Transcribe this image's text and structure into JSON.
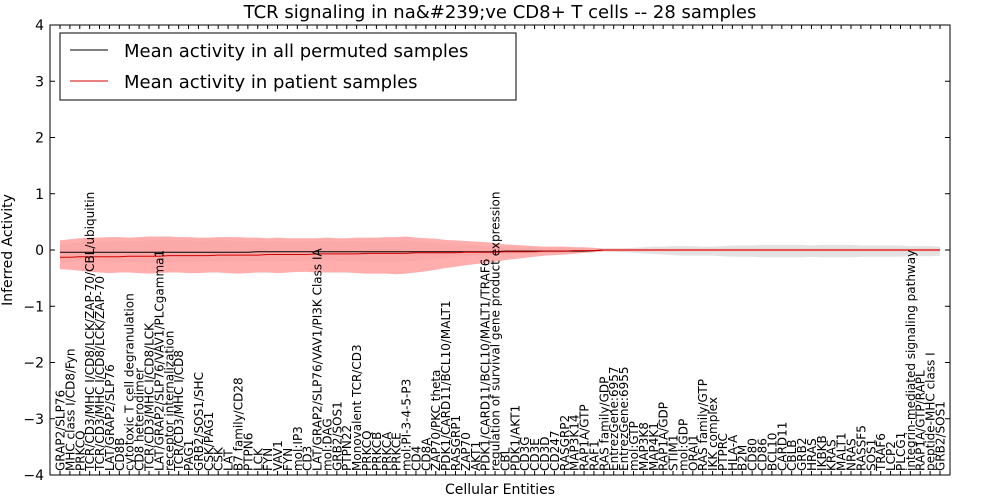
{
  "chart_data": {
    "type": "line",
    "title": "TCR signaling in na&#239;ve CD8+ T cells -- 28 samples",
    "xlabel": "Cellular Entities",
    "ylabel": "Inferred Activity",
    "ylim": [
      -4,
      4
    ],
    "yticks": [
      "4",
      "3",
      "2",
      "1",
      "0",
      "−1",
      "−2",
      "−3",
      "−4"
    ],
    "legend": {
      "position": "top-left",
      "entries": [
        {
          "label": "Mean activity in all permuted samples",
          "color": "#000000"
        },
        {
          "label": "Mean activity in patient samples",
          "color": "#d40000"
        }
      ]
    },
    "categories": [
      "GRAP2/SLP76",
      "MHC class I/CD8/Fyn",
      "PRKCQ",
      "TCR/CD3/MHC I/CD8/LCK/ZAP-70/CBL/ubiquitin",
      "TCR/CD3/MHC I/CD8/LCK/ZAP-70",
      "LAT/GRAP2/SLP76",
      "CD8B",
      "cytotoxic T cell degranulation",
      "CD8 heterodimer",
      "TCR/CD3/MHC I/CD8/LCK",
      "LAT/GRAP2/SLP76/VAV1/PLCgamma1",
      "receptor internalization",
      "TCR/CD3/MHC I/CD8",
      "PAG1",
      "GRB2/SOS1/SHC",
      "CSK/PAG1",
      "CSK",
      "LAT",
      "B7 family/CD28",
      "PTPN6",
      "LCK",
      "FYN",
      "VAV1",
      "FYN",
      "mol:IP3",
      "CD3",
      "LAT/GRAP2/SLP76/VAV1/PI3K Class IA",
      "mol:DAG",
      "GRB2/SOS1",
      "PTPN22",
      "Monovalent TCR/CD3",
      "PRKCQ",
      "PRKCB",
      "PRKCA",
      "PRKCE",
      "mol:PI-3-4-5-P3",
      "CD4",
      "CD8A",
      "ZAP70/PKC theta",
      "PDK1/CARD11/BCL10/MALT1",
      "RASGRP1",
      "ZAP70",
      "AKT1",
      "PDK1/CARD11/BCL10/MALT1/TRAF6",
      "regulation of survival gene product expression",
      "CBL",
      "PDK1/AKT1",
      "CD3G",
      "CD3E",
      "CD3D",
      "CD247",
      "RASGRP2",
      "MAP3K14",
      "RAP1A/GTP",
      "RAF1",
      "RAS family/GDP",
      "EntrezGene:6957",
      "EntrezGene:6955",
      "mol:GTP",
      "MAP3K8",
      "MAP4K1",
      "RAP1A/GDP",
      "STIM1",
      "mol:GDP",
      "ORAI1",
      "RAS family/GTP",
      "IKK complex",
      "PTPRC",
      "HLA-A",
      "B2M",
      "CD80",
      "CD86",
      "BCL10",
      "CARD11",
      "CBLB",
      "GRB2",
      "HRAS",
      "IKBKB",
      "KRAS",
      "MALT1",
      "NRAS",
      "RASSF5",
      "SOS1",
      "TRAF6",
      "LCP2",
      "PLCG1",
      "integrin-mediated signaling pathway",
      "RAP1A/GTP/RAPL",
      "peptide-MHC class I",
      "GRB2/SOS1"
    ],
    "series": [
      {
        "name": "Mean activity in all permuted samples",
        "color": "#000000",
        "values": [
          -0.04,
          -0.04,
          -0.04,
          -0.04,
          -0.04,
          -0.04,
          -0.04,
          -0.04,
          -0.04,
          -0.04,
          -0.04,
          -0.04,
          -0.04,
          -0.04,
          -0.04,
          -0.04,
          -0.04,
          -0.04,
          -0.04,
          -0.04,
          -0.03,
          -0.03,
          -0.03,
          -0.03,
          -0.03,
          -0.03,
          -0.03,
          -0.03,
          -0.03,
          -0.03,
          -0.03,
          -0.03,
          -0.03,
          -0.03,
          -0.03,
          -0.03,
          -0.03,
          -0.03,
          -0.03,
          -0.03,
          -0.03,
          -0.03,
          -0.03,
          -0.03,
          -0.03,
          -0.02,
          -0.02,
          -0.02,
          -0.02,
          -0.02,
          -0.02,
          -0.02,
          -0.02,
          -0.02,
          -0.01,
          0.0,
          0.0,
          0.0,
          0.0,
          0.0,
          0.0,
          0.0,
          0.0,
          0.0,
          0.0,
          0.0,
          0.0,
          0.0,
          0.0,
          0.0,
          0.0,
          0.0,
          0.0,
          0.0,
          0.0,
          0.0,
          0.0,
          0.0,
          0.0,
          0.0,
          0.0,
          0.0,
          0.0,
          0.0,
          0.0,
          0.0,
          0.0,
          0.0,
          0.0,
          0.0
        ]
      },
      {
        "name": "Mean activity in patient samples",
        "color": "#d40000",
        "values": [
          -0.13,
          -0.13,
          -0.12,
          -0.12,
          -0.12,
          -0.12,
          -0.12,
          -0.11,
          -0.11,
          -0.11,
          -0.11,
          -0.1,
          -0.1,
          -0.1,
          -0.1,
          -0.1,
          -0.09,
          -0.09,
          -0.09,
          -0.09,
          -0.09,
          -0.08,
          -0.08,
          -0.08,
          -0.08,
          -0.08,
          -0.07,
          -0.07,
          -0.07,
          -0.07,
          -0.07,
          -0.06,
          -0.06,
          -0.06,
          -0.06,
          -0.06,
          -0.05,
          -0.05,
          -0.05,
          -0.05,
          -0.05,
          -0.04,
          -0.04,
          -0.04,
          -0.04,
          -0.03,
          -0.03,
          -0.03,
          -0.03,
          -0.02,
          -0.02,
          -0.02,
          -0.01,
          -0.01,
          -0.01,
          0.0,
          0.0,
          0.0,
          0.0,
          0.0,
          0.0,
          0.0,
          0.0,
          0.0,
          0.0,
          0.0,
          0.0,
          0.0,
          0.0,
          0.0,
          0.0,
          0.0,
          0.0,
          0.0,
          0.0,
          0.0,
          0.0,
          0.0,
          0.0,
          0.0,
          0.0,
          0.0,
          0.0,
          0.0,
          0.0,
          0.0,
          0.0,
          0.0,
          0.0,
          0.0
        ]
      }
    ],
    "bands": [
      {
        "name": "permuted spread",
        "color": "#d9d9d9",
        "upper": [
          0.1,
          0.12,
          0.13,
          0.14,
          0.14,
          0.15,
          0.16,
          0.16,
          0.16,
          0.17,
          0.17,
          0.17,
          0.17,
          0.17,
          0.16,
          0.17,
          0.17,
          0.17,
          0.16,
          0.16,
          0.16,
          0.15,
          0.16,
          0.15,
          0.15,
          0.16,
          0.16,
          0.16,
          0.15,
          0.16,
          0.16,
          0.15,
          0.15,
          0.16,
          0.16,
          0.17,
          0.15,
          0.14,
          0.13,
          0.11,
          0.1,
          0.09,
          0.08,
          0.07,
          0.06,
          0.05,
          0.05,
          0.04,
          0.04,
          0.04,
          0.04,
          0.05,
          0.05,
          0.04,
          0.03,
          0.03,
          0.03,
          0.03,
          0.04,
          0.05,
          0.06,
          0.06,
          0.07,
          0.07,
          0.07,
          0.06,
          0.06,
          0.07,
          0.08,
          0.08,
          0.08,
          0.09,
          0.09,
          0.09,
          0.09,
          0.09,
          0.08,
          0.09,
          0.09,
          0.09,
          0.09,
          0.08,
          0.08,
          0.08,
          0.08,
          0.08,
          0.07,
          0.07,
          0.07,
          0.06
        ],
        "lower": [
          -0.24,
          -0.22,
          -0.2,
          -0.19,
          -0.2,
          -0.21,
          -0.22,
          -0.21,
          -0.22,
          -0.23,
          -0.22,
          -0.21,
          -0.22,
          -0.22,
          -0.21,
          -0.2,
          -0.21,
          -0.2,
          -0.21,
          -0.2,
          -0.19,
          -0.2,
          -0.2,
          -0.19,
          -0.2,
          -0.19,
          -0.18,
          -0.18,
          -0.19,
          -0.2,
          -0.2,
          -0.21,
          -0.22,
          -0.22,
          -0.22,
          -0.2,
          -0.19,
          -0.18,
          -0.16,
          -0.14,
          -0.12,
          -0.11,
          -0.1,
          -0.09,
          -0.08,
          -0.07,
          -0.06,
          -0.06,
          -0.05,
          -0.05,
          -0.05,
          -0.05,
          -0.05,
          -0.05,
          -0.04,
          -0.03,
          -0.03,
          -0.04,
          -0.05,
          -0.06,
          -0.07,
          -0.08,
          -0.09,
          -0.1,
          -0.1,
          -0.1,
          -0.1,
          -0.11,
          -0.12,
          -0.12,
          -0.12,
          -0.13,
          -0.13,
          -0.13,
          -0.13,
          -0.13,
          -0.12,
          -0.13,
          -0.13,
          -0.13,
          -0.13,
          -0.12,
          -0.12,
          -0.12,
          -0.12,
          -0.12,
          -0.11,
          -0.11,
          -0.11,
          -0.1
        ]
      },
      {
        "name": "patient spread",
        "color": "#ff9999",
        "upper": [
          0.17,
          0.19,
          0.21,
          0.22,
          0.22,
          0.23,
          0.23,
          0.22,
          0.23,
          0.24,
          0.24,
          0.24,
          0.23,
          0.23,
          0.22,
          0.22,
          0.23,
          0.23,
          0.23,
          0.22,
          0.22,
          0.21,
          0.22,
          0.21,
          0.21,
          0.21,
          0.21,
          0.22,
          0.21,
          0.21,
          0.22,
          0.22,
          0.22,
          0.23,
          0.23,
          0.24,
          0.22,
          0.21,
          0.2,
          0.18,
          0.17,
          0.16,
          0.15,
          0.14,
          0.12,
          0.1,
          0.09,
          0.08,
          0.07,
          0.06,
          0.06,
          0.06,
          0.05,
          0.05,
          0.04,
          0.02,
          0.02,
          0.02,
          0.02,
          0.02,
          0.02,
          0.02,
          0.02,
          0.02,
          0.02,
          0.02,
          0.02,
          0.02,
          0.02,
          0.02,
          0.02,
          0.02,
          0.02,
          0.02,
          0.02,
          0.02,
          0.02,
          0.02,
          0.02,
          0.02,
          0.02,
          0.02,
          0.02,
          0.02,
          0.02,
          0.02,
          0.02,
          0.02,
          0.02,
          0.02
        ],
        "lower": [
          -0.34,
          -0.35,
          -0.37,
          -0.39,
          -0.4,
          -0.41,
          -0.4,
          -0.4,
          -0.41,
          -0.42,
          -0.41,
          -0.4,
          -0.4,
          -0.41,
          -0.41,
          -0.4,
          -0.4,
          -0.41,
          -0.42,
          -0.41,
          -0.4,
          -0.4,
          -0.41,
          -0.4,
          -0.39,
          -0.39,
          -0.4,
          -0.4,
          -0.4,
          -0.4,
          -0.41,
          -0.42,
          -0.42,
          -0.42,
          -0.43,
          -0.42,
          -0.4,
          -0.38,
          -0.35,
          -0.32,
          -0.3,
          -0.27,
          -0.25,
          -0.23,
          -0.21,
          -0.18,
          -0.16,
          -0.14,
          -0.12,
          -0.1,
          -0.09,
          -0.08,
          -0.07,
          -0.05,
          -0.04,
          -0.02,
          -0.02,
          -0.02,
          -0.02,
          -0.02,
          -0.02,
          -0.02,
          -0.02,
          -0.02,
          -0.02,
          -0.02,
          -0.02,
          -0.02,
          -0.02,
          -0.02,
          -0.02,
          -0.02,
          -0.02,
          -0.02,
          -0.02,
          -0.02,
          -0.02,
          -0.02,
          -0.02,
          -0.02,
          -0.02,
          -0.02,
          -0.02,
          -0.02,
          -0.02,
          -0.02,
          -0.02,
          -0.02,
          -0.02,
          -0.02
        ]
      }
    ]
  }
}
